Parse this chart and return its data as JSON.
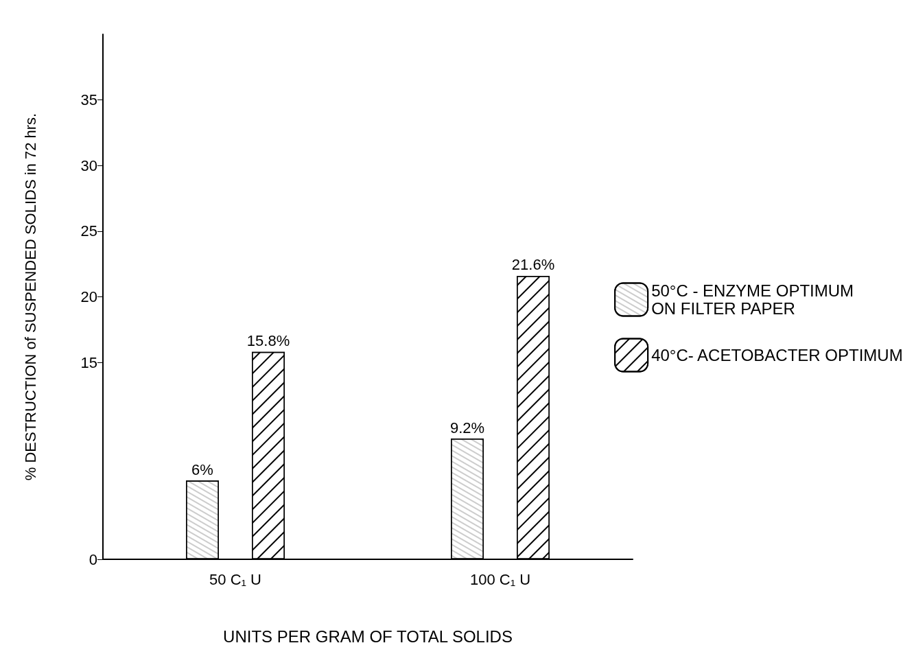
{
  "chart_data": {
    "type": "bar",
    "xlabel": "UNITS PER GRAM OF TOTAL SOLIDS",
    "ylabel": "% DESTRUCTION of SUSPENDED SOLIDS in 72 hrs.",
    "categories": [
      "50 C₁ U",
      "100 C₁ U"
    ],
    "series": [
      {
        "name": "50°C - ENZYME OPTIMUM\nON FILTER PAPER",
        "color": "#ffffff",
        "values": [
          6,
          9.2
        ],
        "value_labels": [
          "6%",
          "9.2%"
        ]
      },
      {
        "name": "40°C- ACETOBACTER OPTIMUM",
        "color": "#000000",
        "values": [
          15.8,
          21.6
        ],
        "value_labels": [
          "15.8%",
          "21.6%"
        ]
      }
    ],
    "ylim": [
      0,
      40
    ],
    "yticks": [
      0,
      15,
      20,
      25,
      30,
      35
    ],
    "grid": false,
    "legend": "right"
  }
}
